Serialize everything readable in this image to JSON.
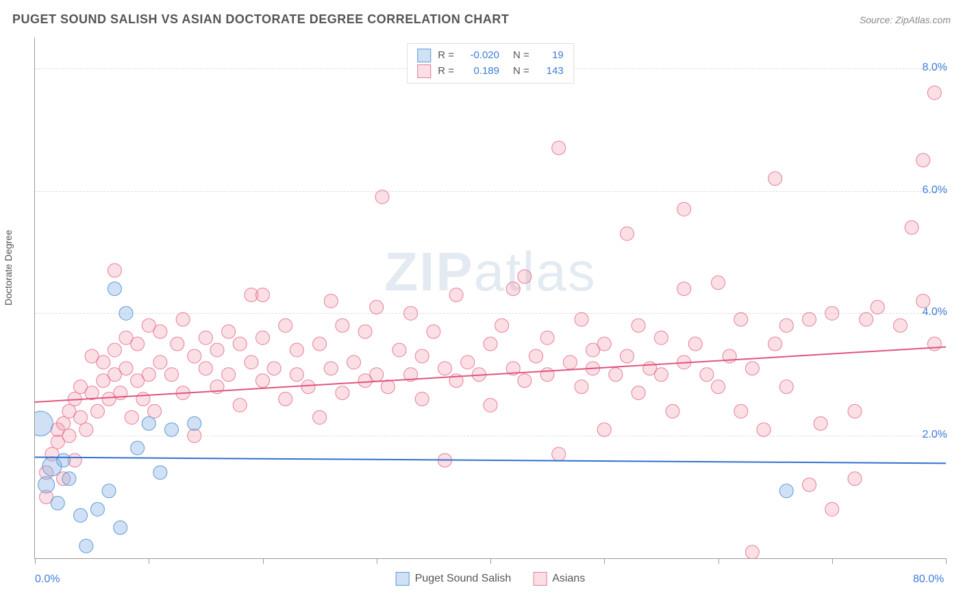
{
  "header": {
    "title": "PUGET SOUND SALISH VS ASIAN DOCTORATE DEGREE CORRELATION CHART",
    "source": "Source: ZipAtlas.com"
  },
  "watermark": {
    "bold": "ZIP",
    "light": "atlas"
  },
  "chart": {
    "type": "scatter",
    "ylabel": "Doctorate Degree",
    "xlim": [
      0,
      80
    ],
    "ylim": [
      0,
      8.5
    ],
    "x_ticks": [
      0,
      10,
      20,
      30,
      40,
      50,
      60,
      70,
      80
    ],
    "y_gridlines": [
      2,
      4,
      6,
      8
    ],
    "x_axis_labels": [
      {
        "value": "0.0%",
        "at": 0
      },
      {
        "value": "80.0%",
        "at": 80
      }
    ],
    "y_axis_labels": [
      {
        "value": "2.0%",
        "at": 2
      },
      {
        "value": "4.0%",
        "at": 4
      },
      {
        "value": "6.0%",
        "at": 6
      },
      {
        "value": "8.0%",
        "at": 8
      }
    ],
    "background_color": "#ffffff",
    "grid_color": "#dddddd",
    "axis_color": "#999999",
    "series": {
      "salish": {
        "label": "Puget Sound Salish",
        "fill_color": "rgba(120,170,230,0.35)",
        "stroke_color": "#5b9bd5",
        "marker_radius": 10,
        "R": "-0.020",
        "N": "19",
        "trend": {
          "y_at_x0": 1.65,
          "y_at_x80": 1.55,
          "stroke": "#2e6fd0",
          "width": 2
        },
        "points": [
          {
            "x": 0.5,
            "y": 2.2,
            "r": 18
          },
          {
            "x": 1.5,
            "y": 1.5,
            "r": 14
          },
          {
            "x": 1.0,
            "y": 1.2,
            "r": 12
          },
          {
            "x": 2.0,
            "y": 0.9,
            "r": 10
          },
          {
            "x": 3.0,
            "y": 1.3,
            "r": 10
          },
          {
            "x": 4.0,
            "y": 0.7,
            "r": 10
          },
          {
            "x": 5.5,
            "y": 0.8,
            "r": 10
          },
          {
            "x": 6.5,
            "y": 1.1,
            "r": 10
          },
          {
            "x": 7.0,
            "y": 4.4,
            "r": 10
          },
          {
            "x": 8.0,
            "y": 4.0,
            "r": 10
          },
          {
            "x": 9.0,
            "y": 1.8,
            "r": 10
          },
          {
            "x": 10.0,
            "y": 2.2,
            "r": 10
          },
          {
            "x": 11.0,
            "y": 1.4,
            "r": 10
          },
          {
            "x": 12.0,
            "y": 2.1,
            "r": 10
          },
          {
            "x": 4.5,
            "y": 0.2,
            "r": 10
          },
          {
            "x": 7.5,
            "y": 0.5,
            "r": 10
          },
          {
            "x": 14.0,
            "y": 2.2,
            "r": 10
          },
          {
            "x": 2.5,
            "y": 1.6,
            "r": 10
          },
          {
            "x": 66.0,
            "y": 1.1,
            "r": 10
          }
        ]
      },
      "asian": {
        "label": "Asians",
        "fill_color": "rgba(240,150,170,0.30)",
        "stroke_color": "#e87c9a",
        "marker_radius": 10,
        "R": "0.189",
        "N": "143",
        "trend": {
          "y_at_x0": 2.55,
          "y_at_x80": 3.45,
          "stroke": "#e0547c",
          "width": 2
        },
        "points": [
          {
            "x": 1,
            "y": 1.0
          },
          {
            "x": 1,
            "y": 1.4
          },
          {
            "x": 1.5,
            "y": 1.7
          },
          {
            "x": 2,
            "y": 1.9
          },
          {
            "x": 2,
            "y": 2.1
          },
          {
            "x": 2.5,
            "y": 2.2
          },
          {
            "x": 2.5,
            "y": 1.3
          },
          {
            "x": 3,
            "y": 2.0
          },
          {
            "x": 3,
            "y": 2.4
          },
          {
            "x": 3.5,
            "y": 1.6
          },
          {
            "x": 3.5,
            "y": 2.6
          },
          {
            "x": 4,
            "y": 2.3
          },
          {
            "x": 4,
            "y": 2.8
          },
          {
            "x": 4.5,
            "y": 2.1
          },
          {
            "x": 5,
            "y": 2.7
          },
          {
            "x": 5,
            "y": 3.3
          },
          {
            "x": 5.5,
            "y": 2.4
          },
          {
            "x": 6,
            "y": 2.9
          },
          {
            "x": 6,
            "y": 3.2
          },
          {
            "x": 6.5,
            "y": 2.6
          },
          {
            "x": 7,
            "y": 3.0
          },
          {
            "x": 7,
            "y": 3.4
          },
          {
            "x": 7,
            "y": 4.7
          },
          {
            "x": 7.5,
            "y": 2.7
          },
          {
            "x": 8,
            "y": 3.1
          },
          {
            "x": 8,
            "y": 3.6
          },
          {
            "x": 8.5,
            "y": 2.3
          },
          {
            "x": 9,
            "y": 2.9
          },
          {
            "x": 9,
            "y": 3.5
          },
          {
            "x": 9.5,
            "y": 2.6
          },
          {
            "x": 10,
            "y": 3.0
          },
          {
            "x": 10,
            "y": 3.8
          },
          {
            "x": 10.5,
            "y": 2.4
          },
          {
            "x": 11,
            "y": 3.2
          },
          {
            "x": 11,
            "y": 3.7
          },
          {
            "x": 12,
            "y": 3.0
          },
          {
            "x": 12.5,
            "y": 3.5
          },
          {
            "x": 13,
            "y": 2.7
          },
          {
            "x": 13,
            "y": 3.9
          },
          {
            "x": 14,
            "y": 3.3
          },
          {
            "x": 14,
            "y": 2.0
          },
          {
            "x": 15,
            "y": 3.1
          },
          {
            "x": 15,
            "y": 3.6
          },
          {
            "x": 16,
            "y": 2.8
          },
          {
            "x": 16,
            "y": 3.4
          },
          {
            "x": 17,
            "y": 3.0
          },
          {
            "x": 17,
            "y": 3.7
          },
          {
            "x": 18,
            "y": 2.5
          },
          {
            "x": 18,
            "y": 3.5
          },
          {
            "x": 19,
            "y": 3.2
          },
          {
            "x": 19,
            "y": 4.3
          },
          {
            "x": 20,
            "y": 2.9
          },
          {
            "x": 20,
            "y": 3.6
          },
          {
            "x": 20,
            "y": 4.3
          },
          {
            "x": 21,
            "y": 3.1
          },
          {
            "x": 22,
            "y": 2.6
          },
          {
            "x": 22,
            "y": 3.8
          },
          {
            "x": 23,
            "y": 3.0
          },
          {
            "x": 23,
            "y": 3.4
          },
          {
            "x": 24,
            "y": 2.8
          },
          {
            "x": 25,
            "y": 3.5
          },
          {
            "x": 25,
            "y": 2.3
          },
          {
            "x": 26,
            "y": 3.1
          },
          {
            "x": 26,
            "y": 4.2
          },
          {
            "x": 27,
            "y": 2.7
          },
          {
            "x": 27,
            "y": 3.8
          },
          {
            "x": 28,
            "y": 3.2
          },
          {
            "x": 29,
            "y": 2.9
          },
          {
            "x": 29,
            "y": 3.7
          },
          {
            "x": 30,
            "y": 3.0
          },
          {
            "x": 30,
            "y": 4.1
          },
          {
            "x": 30.5,
            "y": 5.9
          },
          {
            "x": 31,
            "y": 2.8
          },
          {
            "x": 32,
            "y": 3.4
          },
          {
            "x": 33,
            "y": 3.0
          },
          {
            "x": 33,
            "y": 4.0
          },
          {
            "x": 34,
            "y": 2.6
          },
          {
            "x": 34,
            "y": 3.3
          },
          {
            "x": 35,
            "y": 3.7
          },
          {
            "x": 36,
            "y": 3.1
          },
          {
            "x": 36,
            "y": 1.6
          },
          {
            "x": 37,
            "y": 2.9
          },
          {
            "x": 37,
            "y": 4.3
          },
          {
            "x": 38,
            "y": 3.2
          },
          {
            "x": 39,
            "y": 3.0
          },
          {
            "x": 40,
            "y": 3.5
          },
          {
            "x": 40,
            "y": 2.5
          },
          {
            "x": 41,
            "y": 3.8
          },
          {
            "x": 42,
            "y": 3.1
          },
          {
            "x": 42,
            "y": 4.4
          },
          {
            "x": 43,
            "y": 2.9
          },
          {
            "x": 43,
            "y": 4.6
          },
          {
            "x": 44,
            "y": 3.3
          },
          {
            "x": 45,
            "y": 3.0
          },
          {
            "x": 45,
            "y": 3.6
          },
          {
            "x": 46,
            "y": 1.7
          },
          {
            "x": 46,
            "y": 6.7
          },
          {
            "x": 47,
            "y": 3.2
          },
          {
            "x": 48,
            "y": 2.8
          },
          {
            "x": 48,
            "y": 3.9
          },
          {
            "x": 49,
            "y": 3.4
          },
          {
            "x": 49,
            "y": 3.1
          },
          {
            "x": 50,
            "y": 3.5
          },
          {
            "x": 50,
            "y": 2.1
          },
          {
            "x": 51,
            "y": 3.0
          },
          {
            "x": 52,
            "y": 3.3
          },
          {
            "x": 52,
            "y": 5.3
          },
          {
            "x": 53,
            "y": 2.7
          },
          {
            "x": 53,
            "y": 3.8
          },
          {
            "x": 54,
            "y": 3.1
          },
          {
            "x": 55,
            "y": 3.0
          },
          {
            "x": 55,
            "y": 3.6
          },
          {
            "x": 56,
            "y": 2.4
          },
          {
            "x": 57,
            "y": 3.2
          },
          {
            "x": 57,
            "y": 5.7
          },
          {
            "x": 57,
            "y": 4.4
          },
          {
            "x": 58,
            "y": 3.5
          },
          {
            "x": 59,
            "y": 3.0
          },
          {
            "x": 60,
            "y": 2.8
          },
          {
            "x": 60,
            "y": 4.5
          },
          {
            "x": 61,
            "y": 3.3
          },
          {
            "x": 62,
            "y": 2.4
          },
          {
            "x": 62,
            "y": 3.9
          },
          {
            "x": 63,
            "y": 3.1
          },
          {
            "x": 64,
            "y": 2.1
          },
          {
            "x": 65,
            "y": 3.5
          },
          {
            "x": 65,
            "y": 6.2
          },
          {
            "x": 66,
            "y": 2.8
          },
          {
            "x": 66,
            "y": 3.8
          },
          {
            "x": 68,
            "y": 1.2
          },
          {
            "x": 68,
            "y": 3.9
          },
          {
            "x": 69,
            "y": 2.2
          },
          {
            "x": 70,
            "y": 0.8
          },
          {
            "x": 70,
            "y": 4.0
          },
          {
            "x": 72,
            "y": 2.4
          },
          {
            "x": 72,
            "y": 1.3
          },
          {
            "x": 73,
            "y": 3.9
          },
          {
            "x": 74,
            "y": 4.1
          },
          {
            "x": 76,
            "y": 3.8
          },
          {
            "x": 77,
            "y": 5.4
          },
          {
            "x": 78,
            "y": 6.5
          },
          {
            "x": 78,
            "y": 4.2
          },
          {
            "x": 79,
            "y": 7.6
          },
          {
            "x": 79,
            "y": 3.5
          },
          {
            "x": 63,
            "y": 0.1
          }
        ]
      }
    },
    "legend_bottom": [
      {
        "key": "salish",
        "label": "Puget Sound Salish"
      },
      {
        "key": "asian",
        "label": "Asians"
      }
    ]
  }
}
